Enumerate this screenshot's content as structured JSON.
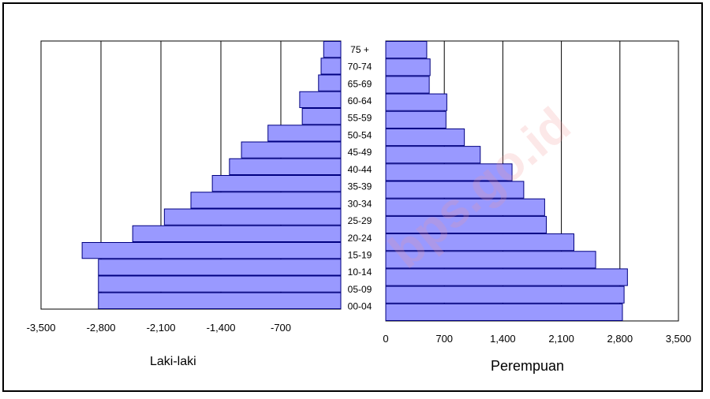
{
  "chart_data": {
    "type": "bar",
    "orientation": "horizontal",
    "categories": [
      "00-04",
      "05-09",
      "10-14",
      "15-19",
      "20-24",
      "25-29",
      "30-34",
      "35-39",
      "40-44",
      "45-49",
      "50-54",
      "55-59",
      "60-64",
      "65-69",
      "70-74",
      "75 +"
    ],
    "series": [
      {
        "name": "Laki-laki",
        "values": [
          -2830,
          -2830,
          -2830,
          -3020,
          -2430,
          -2060,
          -1750,
          -1500,
          -1300,
          -1160,
          -850,
          -450,
          -480,
          -260,
          -230,
          -200
        ]
      },
      {
        "name": "Perempuan",
        "values": [
          2830,
          2850,
          2890,
          2510,
          2250,
          1920,
          1900,
          1650,
          1510,
          1130,
          940,
          720,
          730,
          520,
          530,
          490
        ]
      }
    ],
    "x_left_ticks": [
      "-3,500",
      "-2,800",
      "-2,100",
      "-1,400",
      "-700"
    ],
    "x_right_ticks": [
      "0",
      "700",
      "1,400",
      "2,100",
      "2,800",
      "3,500"
    ],
    "xlim_left": [
      -3500,
      0
    ],
    "xlim_right": [
      0,
      3500
    ],
    "xlabel_left": "Laki-laki",
    "xlabel_right": "Perempuan",
    "grid": "vertical",
    "bar_color": "#9999ff",
    "bar_edge_color": "#000080",
    "watermark": "bps.go.id"
  }
}
